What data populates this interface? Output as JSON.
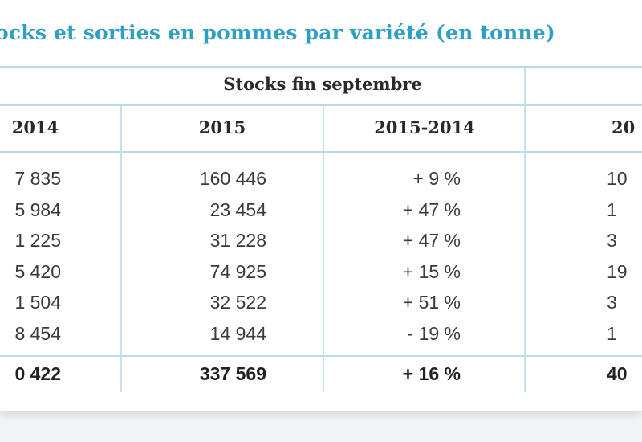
{
  "title": "ocks et sorties en pommes par variété (en tonne)",
  "group_header": "Stocks fin septembre",
  "columns": [
    "2014",
    "2015",
    "2015-2014",
    "20"
  ],
  "rows": [
    [
      "7 835",
      "160 446",
      "+ 9 %",
      "10"
    ],
    [
      "5 984",
      "23 454",
      "+ 47 %",
      "1"
    ],
    [
      "1 225",
      "31 228",
      "+ 47 %",
      "3"
    ],
    [
      "5 420",
      "74 925",
      "+ 15 %",
      "19"
    ],
    [
      "1 504",
      "32 522",
      "+ 51 %",
      "3"
    ],
    [
      "8 454",
      "14 944",
      "- 19 %",
      "1"
    ]
  ],
  "total": [
    "0 422",
    "337 569",
    "+ 16 %",
    "40"
  ]
}
